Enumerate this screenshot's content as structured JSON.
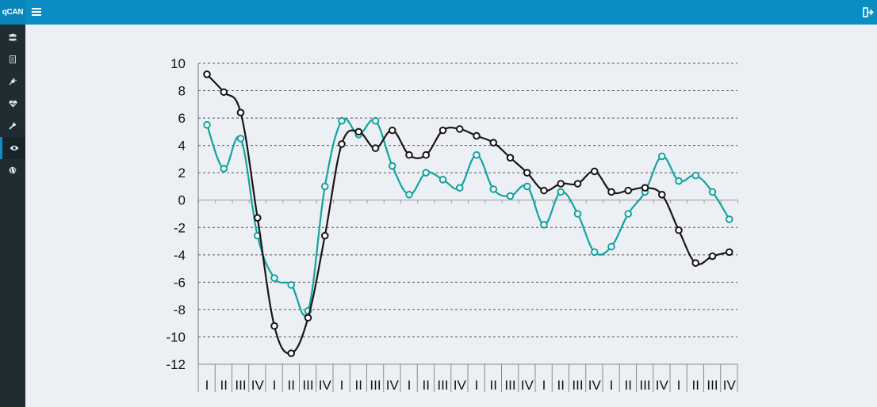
{
  "app": {
    "brand": "qCAN"
  },
  "header": {
    "menu_icon": "hamburger-icon",
    "logout_icon": "sign-out-icon"
  },
  "sidebar": {
    "items": [
      {
        "icon": "users-icon",
        "active": false
      },
      {
        "icon": "document-icon",
        "active": false
      },
      {
        "icon": "plug-icon",
        "active": false
      },
      {
        "icon": "heartbeat-icon",
        "active": false
      },
      {
        "icon": "wrench-icon",
        "active": false
      },
      {
        "icon": "eye-icon",
        "active": true
      },
      {
        "icon": "globe-icon",
        "active": false
      }
    ]
  },
  "colors": {
    "header": "#0b8ec4",
    "sidebar": "#1f2d33",
    "background": "#ecf0f5",
    "series_black": "#1a1416",
    "series_teal": "#12a3a0"
  },
  "chart_data": {
    "type": "line",
    "title": "",
    "xlabel": "",
    "ylabel": "",
    "ylim": [
      -12,
      10
    ],
    "yticks": [
      10,
      8,
      6,
      4,
      2,
      0,
      -2,
      -4,
      -6,
      -8,
      -10,
      -12
    ],
    "grid": "horizontal-dashed",
    "legend": "none",
    "categories": [
      "I",
      "II",
      "III",
      "IV",
      "I",
      "II",
      "III",
      "IV",
      "I",
      "II",
      "III",
      "IV",
      "I",
      "II",
      "III",
      "IV",
      "I",
      "II",
      "III",
      "IV",
      "I",
      "II",
      "III",
      "IV",
      "I",
      "II",
      "III",
      "IV",
      "I",
      "II",
      "III",
      "IV"
    ],
    "series": [
      {
        "color": "#1a1416",
        "values": [
          9.2,
          7.9,
          6.4,
          -1.3,
          -9.2,
          -11.2,
          -8.6,
          -2.6,
          4.1,
          5.0,
          3.8,
          5.1,
          3.3,
          3.3,
          5.1,
          5.2,
          4.7,
          4.2,
          3.1,
          2.0,
          0.7,
          1.2,
          1.2,
          2.1,
          0.6,
          0.7,
          0.9,
          0.4,
          -2.2,
          -4.6,
          -4.1,
          -3.8
        ]
      },
      {
        "color": "#12a3a0",
        "values": [
          5.5,
          2.3,
          4.5,
          -2.6,
          -5.7,
          -6.2,
          -8.1,
          1.0,
          5.8,
          4.8,
          5.8,
          2.5,
          0.4,
          2.0,
          1.5,
          0.9,
          3.3,
          0.8,
          0.3,
          1.0,
          -1.8,
          0.6,
          -1.0,
          -3.8,
          -3.4,
          -1.0,
          0.6,
          3.2,
          1.4,
          1.8,
          0.6,
          -1.4
        ]
      }
    ]
  }
}
